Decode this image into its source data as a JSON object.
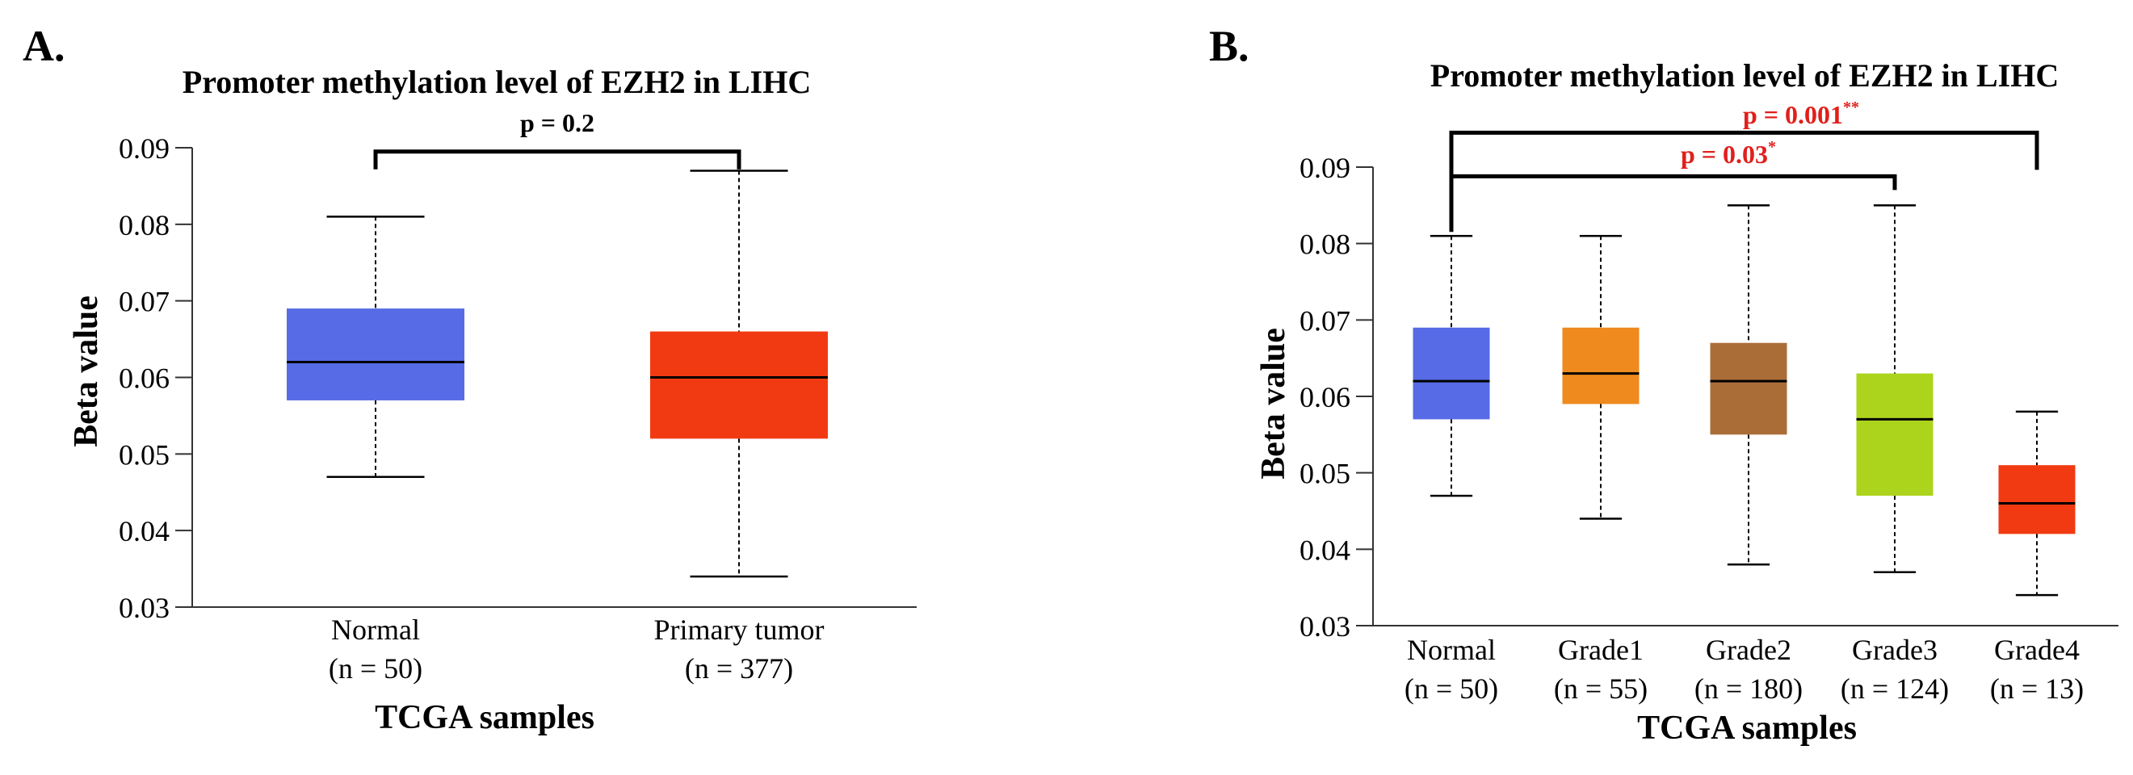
{
  "chart_data": [
    {
      "type": "box",
      "panel_label": "A.",
      "title": "Promoter methylation level of EZH2 in LIHC",
      "xlabel": "TCGA samples",
      "ylabel": "Beta value",
      "ylim": [
        0.03,
        0.09
      ],
      "yticks": [
        "0.03",
        "0.04",
        "0.05",
        "0.06",
        "0.07",
        "0.08",
        "0.09"
      ],
      "categories": [
        {
          "name": "Normal",
          "n_label": "(n = 50)",
          "min": 0.047,
          "q1": 0.057,
          "median": 0.062,
          "q3": 0.069,
          "max": 0.081,
          "color": "#576be6"
        },
        {
          "name": "Primary tumor",
          "n_label": "(n = 377)",
          "min": 0.034,
          "q1": 0.052,
          "median": 0.06,
          "q3": 0.066,
          "max": 0.087,
          "color": "#f23a12"
        }
      ],
      "comparisons": [
        {
          "from": 0,
          "to": 1,
          "y": 0.0895,
          "label": "p = 0.2",
          "stars": "",
          "color": "#000000"
        }
      ]
    },
    {
      "type": "box",
      "panel_label": "B.",
      "title": "Promoter methylation level of EZH2 in LIHC",
      "xlabel": "TCGA samples",
      "ylabel": "Beta value",
      "ylim": [
        0.03,
        0.09
      ],
      "yticks": [
        "0.03",
        "0.04",
        "0.05",
        "0.06",
        "0.07",
        "0.08",
        "0.09"
      ],
      "categories": [
        {
          "name": "Normal",
          "n_label": "(n = 50)",
          "min": 0.047,
          "q1": 0.057,
          "median": 0.062,
          "q3": 0.069,
          "max": 0.081,
          "color": "#576be6"
        },
        {
          "name": "Grade1",
          "n_label": "(n = 55)",
          "min": 0.044,
          "q1": 0.059,
          "median": 0.063,
          "q3": 0.069,
          "max": 0.081,
          "color": "#ef8a1f"
        },
        {
          "name": "Grade2",
          "n_label": "(n = 180)",
          "min": 0.038,
          "q1": 0.055,
          "median": 0.062,
          "q3": 0.067,
          "max": 0.085,
          "color": "#ab6d38"
        },
        {
          "name": "Grade3",
          "n_label": "(n = 124)",
          "min": 0.037,
          "q1": 0.047,
          "median": 0.057,
          "q3": 0.063,
          "max": 0.085,
          "color": "#add41c"
        },
        {
          "name": "Grade4",
          "n_label": "(n = 13)",
          "min": 0.034,
          "q1": 0.042,
          "median": 0.046,
          "q3": 0.051,
          "max": 0.058,
          "color": "#f23a12"
        }
      ],
      "comparisons": [
        {
          "from": 0,
          "to": 3,
          "y": 0.0888,
          "label": "p = 0.03",
          "stars": "*",
          "color": "#e0201b"
        },
        {
          "from": 0,
          "to": 4,
          "y": 0.0945,
          "label": "p = 0.001",
          "stars": "**",
          "color": "#e0201b"
        }
      ]
    }
  ]
}
